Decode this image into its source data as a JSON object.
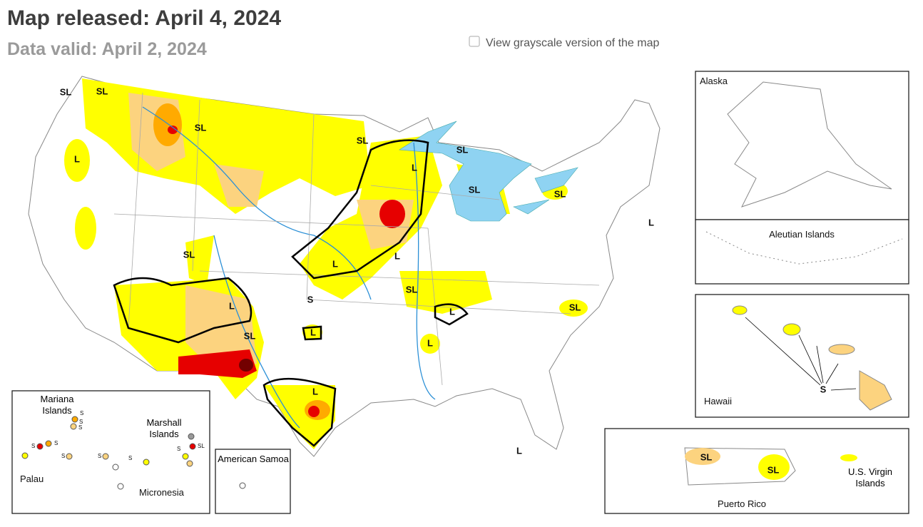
{
  "header": {
    "title": "Map released: April 4, 2024",
    "subtitle": "Data valid: April 2, 2024"
  },
  "grayscale_toggle": "View grayscale version of the map",
  "insets": {
    "alaska": "Alaska",
    "aleutian": "Aleutian Islands",
    "hawaii": "Hawaii",
    "puerto_rico": "Puerto Rico",
    "virgin_islands": "U.S. Virgin Islands",
    "american_samoa": "American Samoa",
    "mariana": "Mariana Islands",
    "marshall": "Marshall Islands",
    "palau": "Palau",
    "micronesia": "Micronesia"
  },
  "impact_labels": [
    "SL",
    "SL",
    "L",
    "SL",
    "SL",
    "L",
    "SL",
    "SL",
    "SL",
    "L",
    "SL",
    "L",
    "L",
    "SL",
    "S",
    "L",
    "SL",
    "L",
    "L",
    "SL",
    "L",
    "L",
    "L",
    "S",
    "SL",
    "SL"
  ],
  "pacific_labels": [
    "S",
    "S",
    "S",
    "S",
    "S",
    "S",
    "S",
    "SL",
    "S",
    "S"
  ]
}
